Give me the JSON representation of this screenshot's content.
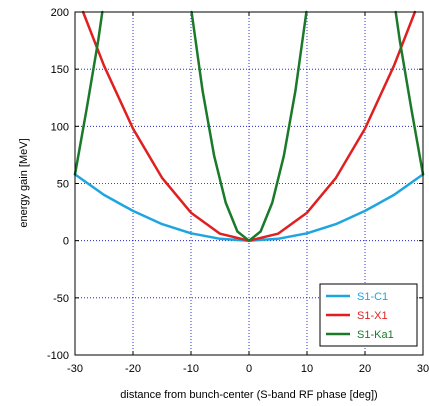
{
  "chart_data": {
    "type": "line",
    "title": "",
    "xlabel": "distance from bunch-center (S-band RF phase [deg])",
    "ylabel": "energy gain [MeV]",
    "xlim": [
      -30,
      30
    ],
    "ylim": [
      -100,
      200
    ],
    "xticks": [
      -30,
      -20,
      -10,
      0,
      10,
      20,
      30
    ],
    "yticks": [
      -100,
      -50,
      0,
      50,
      100,
      150,
      200
    ],
    "grid": true,
    "legend_position": "bottom-right",
    "series": [
      {
        "name": "S1-C1",
        "color": "#1ea5e0",
        "x": [
          -30,
          -25,
          -20,
          -15,
          -10,
          -5,
          0,
          5,
          10,
          15,
          20,
          25,
          30
        ],
        "y": [
          58,
          40,
          26,
          14.5,
          6.4,
          1.6,
          0,
          1.6,
          6.4,
          14.5,
          26,
          40,
          58
        ]
      },
      {
        "name": "S1-X1",
        "color": "#e02020",
        "x": [
          -28.6,
          -25,
          -20,
          -15,
          -10,
          -5,
          0,
          5,
          10,
          15,
          20,
          25,
          28.6
        ],
        "y": [
          200,
          153,
          98,
          55,
          24.5,
          6.1,
          0,
          6.1,
          24.5,
          55,
          98,
          153,
          200
        ]
      },
      {
        "name": "S1-Ka1",
        "color": "#1a7a2a",
        "x": [
          -30,
          -28,
          -26,
          -25.3,
          null,
          -9.9,
          -8,
          -6,
          -4,
          -2,
          0,
          2,
          4,
          6,
          8,
          9.9,
          null,
          25.3,
          26,
          28,
          30
        ],
        "y": [
          58,
          115,
          175,
          200,
          null,
          200,
          131,
          74,
          33,
          8,
          0,
          8,
          33,
          74,
          131,
          200,
          null,
          200,
          175,
          115,
          58
        ]
      }
    ]
  }
}
